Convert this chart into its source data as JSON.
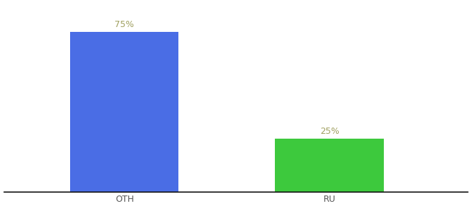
{
  "categories": [
    "OTH",
    "RU"
  ],
  "values": [
    75,
    25
  ],
  "bar_colors": [
    "#4a6de5",
    "#3dc93d"
  ],
  "label_color": "#a0a060",
  "background_color": "#ffffff",
  "axis_line_color": "#111111",
  "tick_label_color": "#555555",
  "value_label_fontsize": 9,
  "tick_label_fontsize": 9,
  "ylim": [
    0,
    88
  ],
  "bar_width": 0.18,
  "x_positions": [
    0.28,
    0.62
  ],
  "xlim": [
    0.08,
    0.85
  ]
}
